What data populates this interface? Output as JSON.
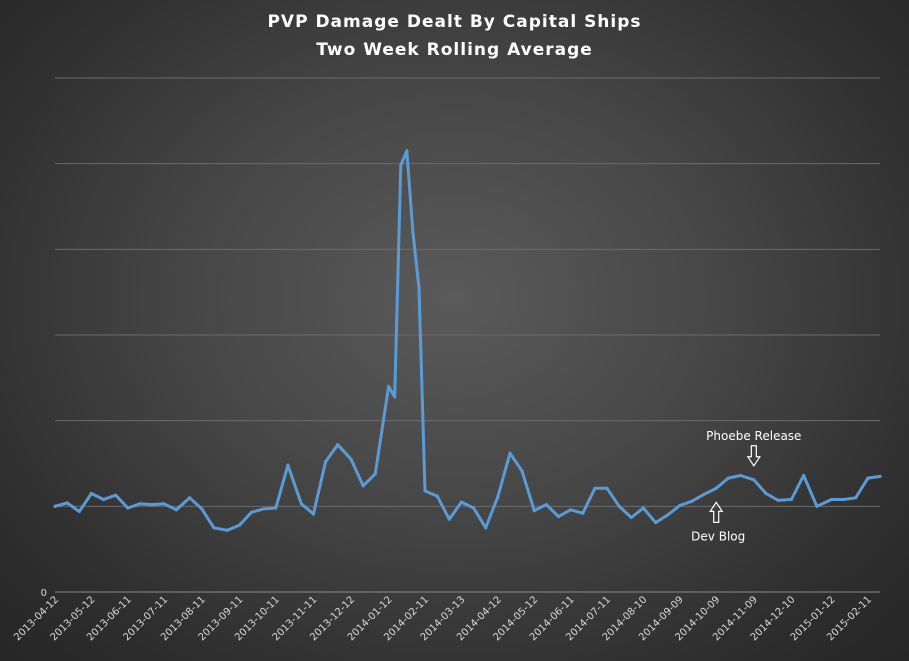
{
  "chart_data": {
    "type": "line",
    "title": "PVP Damage Dealt By Capital Ships",
    "subtitle": "Two Week Rolling Average",
    "xlabel": "",
    "ylabel": "",
    "y_tick_labels": [
      "0"
    ],
    "ylim": [
      0,
      600
    ],
    "grid": true,
    "legend": "none",
    "line_color": "#5b9bd5",
    "x_tick_labels": [
      "2013-04-12",
      "2013-05-12",
      "2013-06-11",
      "2013-07-11",
      "2013-08-11",
      "2013-09-11",
      "2013-10-11",
      "2013-11-11",
      "2013-12-12",
      "2014-01-12",
      "2014-02-11",
      "2014-03-13",
      "2014-04-12",
      "2014-05-12",
      "2014-06-11",
      "2014-07-11",
      "2014-08-10",
      "2014-09-09",
      "2014-10-09",
      "2014-11-09",
      "2014-12-10",
      "2015-01-12",
      "2015-02-11"
    ],
    "x": [
      "2013-04-12",
      "2013-04-22",
      "2013-05-02",
      "2013-05-12",
      "2013-05-22",
      "2013-06-01",
      "2013-06-11",
      "2013-06-21",
      "2013-07-01",
      "2013-07-11",
      "2013-07-21",
      "2013-08-01",
      "2013-08-11",
      "2013-08-21",
      "2013-09-01",
      "2013-09-11",
      "2013-09-21",
      "2013-10-01",
      "2013-10-11",
      "2013-10-21",
      "2013-11-01",
      "2013-11-11",
      "2013-11-21",
      "2013-12-01",
      "2013-12-12",
      "2013-12-22",
      "2014-01-01",
      "2014-01-12",
      "2014-01-17",
      "2014-01-22",
      "2014-01-27",
      "2014-02-01",
      "2014-02-06",
      "2014-02-11",
      "2014-02-21",
      "2014-03-03",
      "2014-03-13",
      "2014-03-23",
      "2014-04-02",
      "2014-04-12",
      "2014-04-22",
      "2014-05-02",
      "2014-05-12",
      "2014-05-22",
      "2014-06-01",
      "2014-06-11",
      "2014-06-21",
      "2014-07-01",
      "2014-07-11",
      "2014-07-21",
      "2014-07-31",
      "2014-08-10",
      "2014-08-20",
      "2014-08-30",
      "2014-09-09",
      "2014-09-19",
      "2014-09-29",
      "2014-10-09",
      "2014-10-19",
      "2014-10-29",
      "2014-11-09",
      "2014-11-19",
      "2014-11-29",
      "2014-12-10",
      "2014-12-20",
      "2014-12-31",
      "2015-01-12",
      "2015-01-22",
      "2015-02-01",
      "2015-02-11",
      "2015-02-21"
    ],
    "values": [
      100,
      104,
      94,
      115,
      108,
      113,
      98,
      103,
      102,
      103,
      96,
      110,
      97,
      75,
      72,
      78,
      93,
      97,
      98,
      148,
      103,
      91,
      152,
      172,
      155,
      124,
      138,
      240,
      228,
      498,
      515,
      420,
      355,
      118,
      112,
      85,
      105,
      98,
      75,
      111,
      162,
      141,
      95,
      102,
      88,
      96,
      92,
      121,
      121,
      100,
      87,
      98,
      81,
      90,
      101,
      106,
      114,
      121,
      133,
      136,
      131,
      115,
      107,
      108,
      136,
      100,
      108,
      108,
      110,
      133,
      135
    ],
    "annotations": [
      {
        "label": "Phoebe Release",
        "date": "2014-11-09",
        "direction": "down"
      },
      {
        "label": "Dev Blog",
        "date": "2014-10-09",
        "direction": "up"
      }
    ]
  }
}
